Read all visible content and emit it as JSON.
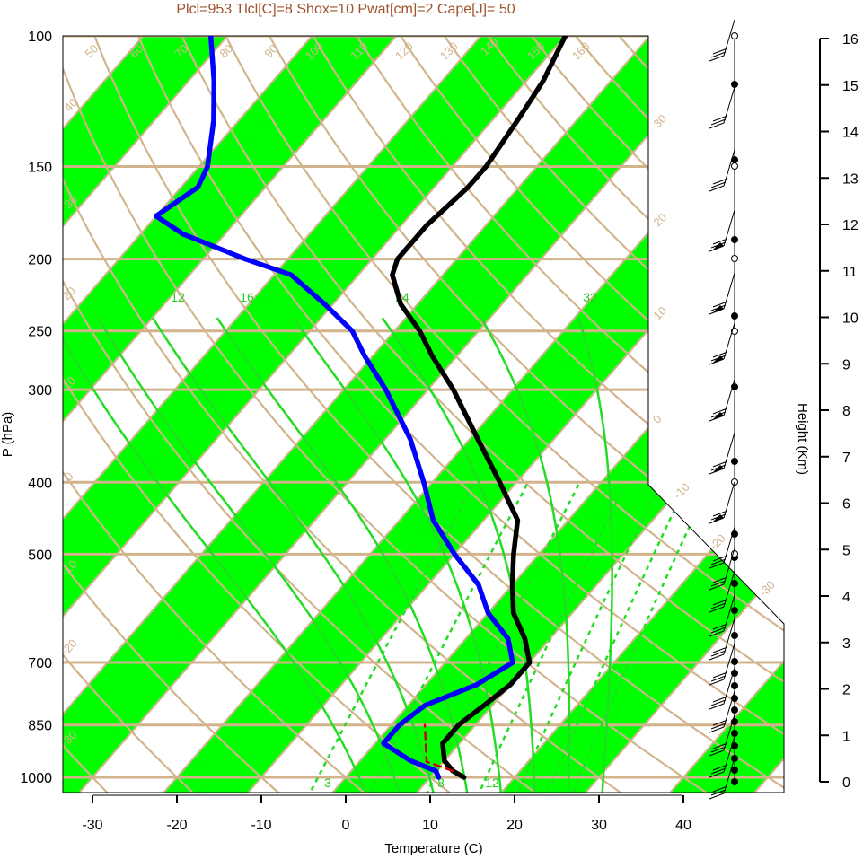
{
  "header": "Plcl=953 Tlcl[C]=8 Shox=10 Pwat[cm]=2 Cape[J]= 50",
  "colors": {
    "stripe": "#00ff00",
    "grid": "#d2b48c",
    "temperature": "#000000",
    "dewpoint": "#0000ff",
    "parcel": "#cc0000",
    "header": "#a0522d",
    "mixing": "#22dd22"
  },
  "chart_data": {
    "type": "line",
    "title": "Plcl=953 Tlcl[C]=8 Shox=10 Pwat[cm]=2 Cape[J]= 50",
    "xlabel": "Temperature (C)",
    "ylabel": "P (hPa)",
    "y2label": "Height (Km)",
    "y_scale": "log",
    "xlim": [
      -35,
      52
    ],
    "ylim": [
      1050,
      100
    ],
    "x_ticks": [
      "-30",
      "-20",
      "-10",
      "0",
      "10",
      "20",
      "30",
      "40"
    ],
    "y_ticks": [
      "100",
      "150",
      "200",
      "250",
      "300",
      "400",
      "500",
      "700",
      "850",
      "1000"
    ],
    "height_ticks": [
      "0",
      "1",
      "2",
      "3",
      "4",
      "5",
      "6",
      "7",
      "8",
      "9",
      "10",
      "11",
      "12",
      "13",
      "14",
      "15",
      "16"
    ],
    "isotherm_labels": [
      "50",
      "60",
      "70",
      "80",
      "90",
      "100",
      "110",
      "120",
      "130",
      "140",
      "150",
      "160",
      "40",
      "30",
      "20",
      "10",
      "0",
      "-10",
      "-20",
      "-30",
      "30",
      "20",
      "10",
      "0",
      "-10",
      "-20",
      "-30"
    ],
    "mixing_ratio_labels": [
      "12",
      "16",
      "24",
      "32",
      "3",
      "8",
      "12"
    ],
    "series": [
      {
        "name": "Temperature",
        "points": [
          {
            "p": 1000,
            "t": 14
          },
          {
            "p": 980,
            "t": 12
          },
          {
            "p": 950,
            "t": 10
          },
          {
            "p": 900,
            "t": 8
          },
          {
            "p": 850,
            "t": 8
          },
          {
            "p": 800,
            "t": 9
          },
          {
            "p": 750,
            "t": 10
          },
          {
            "p": 700,
            "t": 10
          },
          {
            "p": 650,
            "t": 7
          },
          {
            "p": 600,
            "t": 3
          },
          {
            "p": 550,
            "t": 0
          },
          {
            "p": 500,
            "t": -3
          },
          {
            "p": 450,
            "t": -6
          },
          {
            "p": 400,
            "t": -12
          },
          {
            "p": 350,
            "t": -19
          },
          {
            "p": 300,
            "t": -27
          },
          {
            "p": 270,
            "t": -33
          },
          {
            "p": 250,
            "t": -37
          },
          {
            "p": 230,
            "t": -42
          },
          {
            "p": 210,
            "t": -46
          },
          {
            "p": 200,
            "t": -47
          },
          {
            "p": 180,
            "t": -47
          },
          {
            "p": 160,
            "t": -46
          },
          {
            "p": 150,
            "t": -46
          },
          {
            "p": 130,
            "t": -47
          },
          {
            "p": 115,
            "t": -48
          },
          {
            "p": 100,
            "t": -50
          }
        ]
      },
      {
        "name": "Dewpoint",
        "points": [
          {
            "p": 1000,
            "t": 11
          },
          {
            "p": 980,
            "t": 10
          },
          {
            "p": 950,
            "t": 6
          },
          {
            "p": 900,
            "t": 1
          },
          {
            "p": 850,
            "t": 1
          },
          {
            "p": 800,
            "t": 2
          },
          {
            "p": 750,
            "t": 6
          },
          {
            "p": 700,
            "t": 8
          },
          {
            "p": 650,
            "t": 5
          },
          {
            "p": 600,
            "t": 0
          },
          {
            "p": 550,
            "t": -4
          },
          {
            "p": 500,
            "t": -10
          },
          {
            "p": 450,
            "t": -16
          },
          {
            "p": 400,
            "t": -21
          },
          {
            "p": 350,
            "t": -27
          },
          {
            "p": 300,
            "t": -35
          },
          {
            "p": 270,
            "t": -41
          },
          {
            "p": 250,
            "t": -45
          },
          {
            "p": 230,
            "t": -51
          },
          {
            "p": 210,
            "t": -58
          },
          {
            "p": 200,
            "t": -65
          },
          {
            "p": 185,
            "t": -75
          },
          {
            "p": 175,
            "t": -80
          },
          {
            "p": 160,
            "t": -78
          },
          {
            "p": 150,
            "t": -79
          },
          {
            "p": 130,
            "t": -83
          },
          {
            "p": 115,
            "t": -87
          },
          {
            "p": 100,
            "t": -92
          }
        ]
      },
      {
        "name": "Parcel",
        "points": [
          {
            "p": 980,
            "t": 12
          },
          {
            "p": 953,
            "t": 8
          },
          {
            "p": 900,
            "t": 6
          },
          {
            "p": 850,
            "t": 4
          }
        ]
      }
    ]
  }
}
